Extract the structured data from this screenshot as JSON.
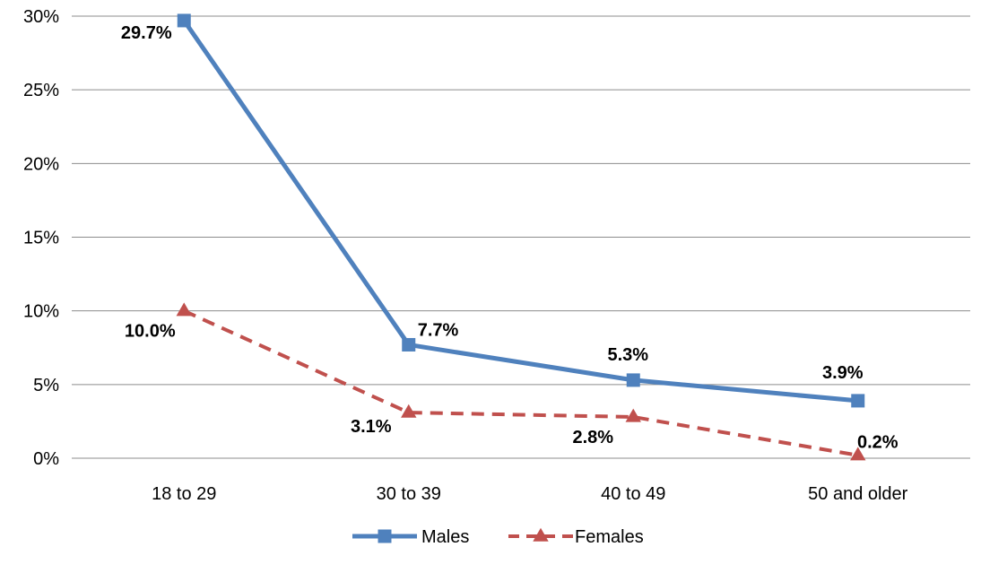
{
  "chart_data": {
    "type": "line",
    "title": "",
    "xlabel": "",
    "ylabel": "",
    "categories": [
      "18 to 29",
      "30 to 39",
      "40 to 49",
      "50 and older"
    ],
    "ylim": [
      0,
      30
    ],
    "yticks": [
      0,
      5,
      10,
      15,
      20,
      25,
      30
    ],
    "ytick_labels": [
      "0%",
      "5%",
      "10%",
      "15%",
      "20%",
      "25%",
      "30%"
    ],
    "grid": true,
    "legend_position": "bottom",
    "series": [
      {
        "name": "Males",
        "values": [
          29.7,
          7.7,
          5.3,
          3.9
        ],
        "labels": [
          "29.7%",
          "7.7%",
          "5.3%",
          "3.9%"
        ],
        "color": "#4F81BD",
        "line_style": "solid",
        "marker": "square"
      },
      {
        "name": "Females",
        "values": [
          10.0,
          3.1,
          2.8,
          0.2
        ],
        "labels": [
          "10.0%",
          "3.1%",
          "2.8%",
          "0.2%"
        ],
        "color": "#C0504D",
        "line_style": "dashed",
        "marker": "triangle"
      }
    ]
  }
}
